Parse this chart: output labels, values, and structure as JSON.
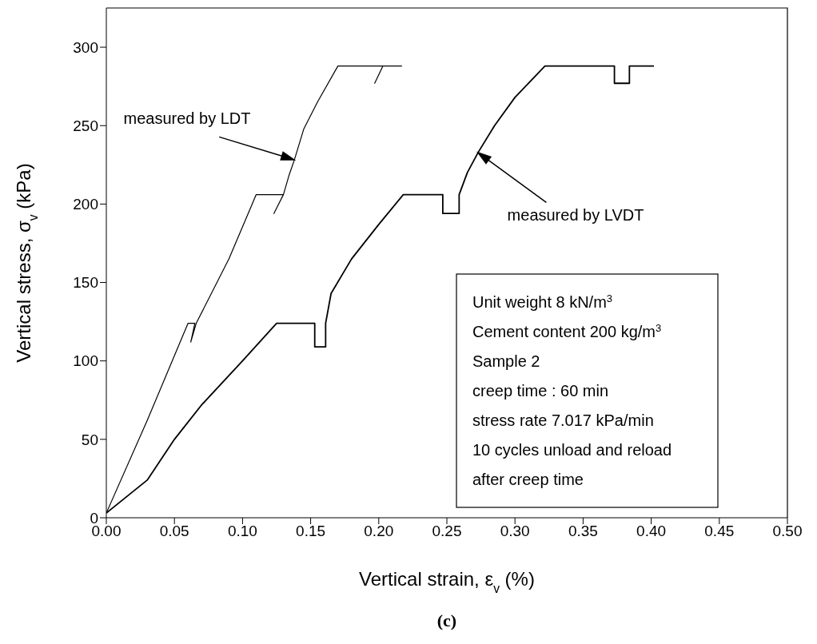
{
  "chart_data": {
    "type": "line",
    "xlabel": "Vertical strain, ε$_{v}$ (%)",
    "ylabel": "Vertical stress, σ$_{v}$ (kPa)",
    "xlim": [
      0,
      0.5
    ],
    "xticks": [
      {
        "value": 0,
        "label": "0.00"
      },
      {
        "value": 0.05,
        "label": "0.05"
      },
      {
        "value": 0.1,
        "label": "0.10"
      },
      {
        "value": 0.15,
        "label": "0.15"
      },
      {
        "value": 0.2,
        "label": "0.20"
      },
      {
        "value": 0.25,
        "label": "0.25"
      },
      {
        "value": 0.3,
        "label": "0.30"
      },
      {
        "value": 0.35,
        "label": "0.35"
      },
      {
        "value": 0.4,
        "label": "0.40"
      },
      {
        "value": 0.45,
        "label": "0.45"
      },
      {
        "value": 0.5,
        "label": "0.50"
      }
    ],
    "ylim": [
      0,
      325
    ],
    "yticks": [
      0,
      50,
      100,
      150,
      200,
      250,
      300
    ],
    "grid": false,
    "marker": "none",
    "line_style": "solid",
    "series": [
      {
        "color": "#000000",
        "x": [
          0,
          0.03,
          0.06,
          0.065,
          0.062,
          0.066,
          0.09,
          0.11,
          0.13,
          0.123,
          0.13,
          0.134,
          0.138,
          0.145,
          0.155,
          0.17,
          0.203,
          0.197,
          0.203,
          0.217
        ],
        "values": [
          3,
          62,
          124,
          124,
          112,
          124,
          165,
          206,
          206,
          194,
          206,
          218,
          228,
          248,
          265,
          288,
          288,
          277,
          288,
          288
        ]
      },
      {
        "color": "#000000",
        "x": [
          0,
          0.03,
          0.05,
          0.07,
          0.1,
          0.125,
          0.153,
          0.153,
          0.161,
          0.161,
          0.165,
          0.18,
          0.2,
          0.218,
          0.247,
          0.247,
          0.259,
          0.259,
          0.265,
          0.273,
          0.285,
          0.3,
          0.322,
          0.373,
          0.373,
          0.384,
          0.384,
          0.402
        ],
        "values": [
          3,
          24,
          50,
          72,
          100,
          124,
          124,
          109,
          109,
          124,
          143,
          165,
          187,
          206,
          206,
          194,
          194,
          206,
          220,
          233,
          250,
          268,
          288,
          288,
          277,
          277,
          288,
          288
        ]
      }
    ],
    "annotations": [
      "measured by LDT",
      "measured by LVDT",
      "Unit weight 8 kN/m$^{3}$\nCement content 200 kg/m$^{3}$\nSample 2\ncreep time : 60 min\nstress rate 7.017 kPa/min\n10 cycles unload and reload\nafter creep time",
      "(c)"
    ]
  }
}
